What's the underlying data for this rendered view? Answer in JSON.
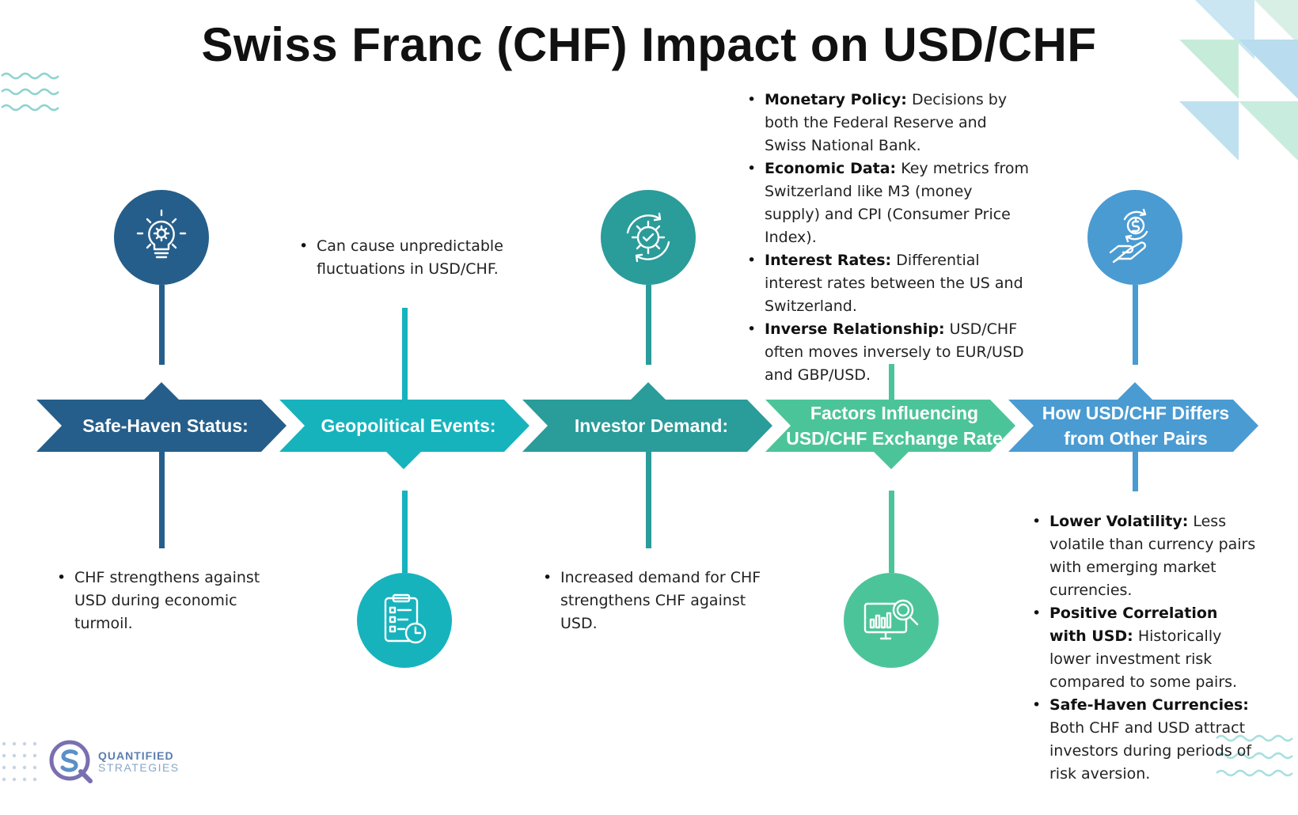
{
  "title": "Swiss Franc (CHF) Impact on USD/CHF",
  "colors": {
    "navy": "#255e8a",
    "teal": "#17b3bd",
    "dark_teal": "#2a9c9a",
    "green": "#4cc49a",
    "sky": "#4a9bd2"
  },
  "stages": [
    {
      "label": "Safe-Haven Status:",
      "icon": "lightbulb-gear-icon"
    },
    {
      "label": "Geopolitical Events:",
      "icon": "checklist-clock-icon"
    },
    {
      "label": "Investor Demand:",
      "icon": "gear-check-cycle-icon"
    },
    {
      "label_line1": "Factors Influencing",
      "label_line2": "USD/CHF Exchange Rate",
      "icon": "monitor-chart-magnifier-icon"
    },
    {
      "label_line1": "How USD/CHF Differs",
      "label_line2": "from Other Pairs",
      "icon": "hand-dollar-cycle-icon"
    }
  ],
  "notes": {
    "safe_haven": [
      "CHF strengthens against USD during economic turmoil."
    ],
    "geopolitical": [
      "Can cause unpredictable fluctuations in USD/CHF."
    ],
    "investor": [
      "Increased demand for CHF strengthens CHF against USD."
    ],
    "factors": [
      {
        "term": "Monetary Policy:",
        "text": " Decisions by both the Federal Reserve and Swiss National Bank."
      },
      {
        "term": "Economic Data:",
        "text": " Key metrics from Switzerland like M3 (money supply) and CPI (Consumer Price Index)."
      },
      {
        "term": "Interest Rates:",
        "text": " Differential interest rates between the US and Switzerland."
      },
      {
        "term": "Inverse Relationship:",
        "text": " USD/CHF often moves inversely to EUR/USD and GBP/USD."
      }
    ],
    "differs": [
      {
        "term": "Lower Volatility:",
        "text": " Less volatile than currency pairs with emerging market currencies."
      },
      {
        "term": "Positive Correlation with USD:",
        "text": " Historically lower investment risk compared to some pairs."
      },
      {
        "term": "Safe-Haven Currencies:",
        "text": " Both CHF and USD attract investors during periods of risk aversion."
      }
    ]
  },
  "logo": {
    "line1": "QUANTIFIED",
    "line2": "STRATEGIES"
  }
}
